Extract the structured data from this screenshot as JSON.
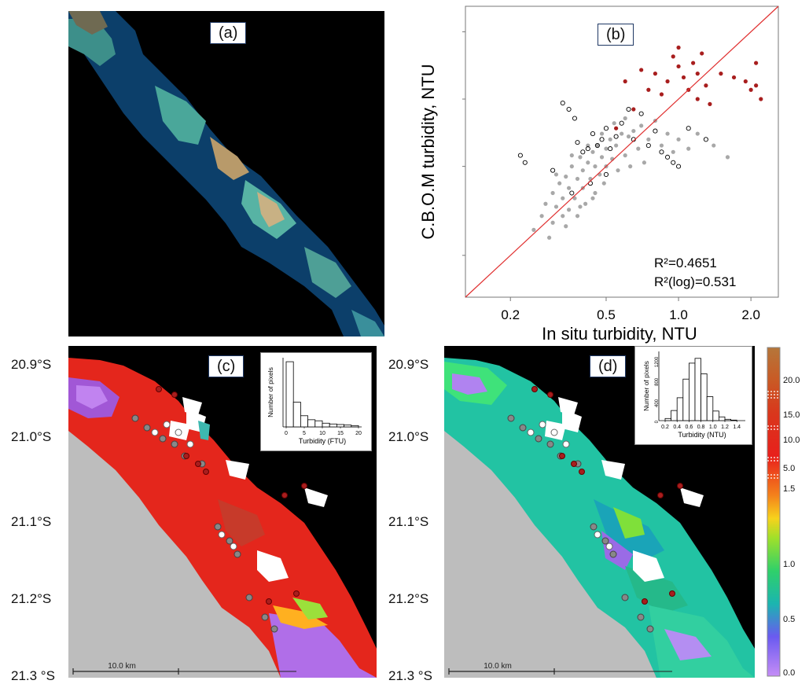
{
  "panel_a": {
    "label": "(a)"
  },
  "panel_b": {
    "label": "(b)",
    "r2": "R²=0.4651",
    "r2_log": "R²(log)=0.531"
  },
  "panel_c": {
    "label": "(c)",
    "scale_bar": "10.0 km"
  },
  "panel_d": {
    "label": "(d)",
    "scale_bar": "10.0 km"
  },
  "latitude_labels": [
    "20.9°S",
    "21.0°S",
    "21.1°S",
    "21.2°S",
    "21.3 °S"
  ],
  "colorbar": {
    "labels": [
      "20.0",
      "15.0",
      "10.0",
      "5.0",
      "1.5",
      "1.0",
      "0.5",
      "0.0"
    ]
  },
  "colors": {
    "hist_bar_fill": "#ffffff",
    "hist_bar_stroke": "#000000",
    "red_points": "#a81e1e",
    "grey_points": "#a8a8a8",
    "one_to_one_line": "#e03030",
    "land_grey": "#bdbdbd"
  },
  "chart_data": [
    {
      "type": "scatter",
      "panel": "(b)",
      "xlabel": "In situ turbidity, NTU",
      "ylabel": "C.B.O.M turbidity, NTU",
      "x_scale": "log",
      "y_scale": "log",
      "xlim": [
        0.13,
        2.6
      ],
      "ylim": [
        0.13,
        2.6
      ],
      "x_ticks": [
        0.2,
        0.5,
        1.0,
        2.0
      ],
      "x_tick_labels": [
        "0.2",
        "0.5",
        "1.0",
        "2.0"
      ],
      "y_ticks": [
        0.2,
        0.5,
        1.0,
        2.0
      ],
      "y_tick_labels": [
        "",
        "",
        "",
        ""
      ],
      "reference_line": "1:1",
      "series": [
        {
          "marker": "filled-grey",
          "color": "#a8a8a8",
          "points": [
            [
              0.25,
              0.26
            ],
            [
              0.27,
              0.3
            ],
            [
              0.28,
              0.34
            ],
            [
              0.3,
              0.28
            ],
            [
              0.3,
              0.38
            ],
            [
              0.31,
              0.33
            ],
            [
              0.32,
              0.42
            ],
            [
              0.33,
              0.3
            ],
            [
              0.33,
              0.36
            ],
            [
              0.34,
              0.45
            ],
            [
              0.35,
              0.32
            ],
            [
              0.35,
              0.4
            ],
            [
              0.36,
              0.5
            ],
            [
              0.37,
              0.36
            ],
            [
              0.38,
              0.44
            ],
            [
              0.38,
              0.3
            ],
            [
              0.39,
              0.55
            ],
            [
              0.4,
              0.4
            ],
            [
              0.4,
              0.48
            ],
            [
              0.41,
              0.34
            ],
            [
              0.42,
              0.52
            ],
            [
              0.43,
              0.44
            ],
            [
              0.44,
              0.58
            ],
            [
              0.45,
              0.38
            ],
            [
              0.45,
              0.5
            ],
            [
              0.46,
              0.62
            ],
            [
              0.47,
              0.46
            ],
            [
              0.48,
              0.55
            ],
            [
              0.49,
              0.42
            ],
            [
              0.5,
              0.6
            ],
            [
              0.5,
              0.5
            ],
            [
              0.52,
              0.66
            ],
            [
              0.53,
              0.54
            ],
            [
              0.55,
              0.62
            ],
            [
              0.56,
              0.48
            ],
            [
              0.58,
              0.7
            ],
            [
              0.6,
              0.56
            ],
            [
              0.62,
              0.68
            ],
            [
              0.63,
              0.5
            ],
            [
              0.65,
              0.72
            ],
            [
              0.68,
              0.6
            ],
            [
              0.7,
              0.76
            ],
            [
              0.72,
              0.52
            ],
            [
              0.75,
              0.66
            ],
            [
              0.8,
              0.8
            ],
            [
              0.85,
              0.62
            ],
            [
              0.9,
              0.7
            ],
            [
              0.95,
              0.58
            ],
            [
              1.0,
              0.66
            ],
            [
              1.1,
              0.6
            ],
            [
              1.2,
              0.7
            ],
            [
              1.4,
              0.62
            ],
            [
              1.6,
              0.55
            ],
            [
              0.29,
              0.24
            ],
            [
              0.34,
              0.27
            ],
            [
              0.39,
              0.33
            ],
            [
              0.44,
              0.36
            ],
            [
              0.31,
              0.46
            ],
            [
              0.36,
              0.56
            ],
            [
              0.42,
              0.62
            ],
            [
              0.48,
              0.7
            ],
            [
              0.54,
              0.78
            ],
            [
              0.6,
              0.82
            ]
          ]
        },
        {
          "marker": "open-black",
          "color": "#000000",
          "points": [
            [
              0.22,
              0.56
            ],
            [
              0.23,
              0.52
            ],
            [
              0.3,
              0.48
            ],
            [
              0.33,
              0.96
            ],
            [
              0.35,
              0.9
            ],
            [
              0.37,
              0.82
            ],
            [
              0.38,
              0.64
            ],
            [
              0.4,
              0.58
            ],
            [
              0.42,
              0.6
            ],
            [
              0.44,
              0.7
            ],
            [
              0.46,
              0.62
            ],
            [
              0.48,
              0.66
            ],
            [
              0.5,
              0.74
            ],
            [
              0.52,
              0.6
            ],
            [
              0.55,
              0.68
            ],
            [
              0.58,
              0.78
            ],
            [
              0.62,
              0.9
            ],
            [
              0.65,
              0.66
            ],
            [
              0.7,
              0.86
            ],
            [
              0.75,
              0.62
            ],
            [
              0.8,
              0.72
            ],
            [
              0.85,
              0.58
            ],
            [
              0.9,
              0.55
            ],
            [
              0.95,
              0.52
            ],
            [
              1.0,
              0.5
            ],
            [
              1.1,
              0.74
            ],
            [
              1.3,
              0.66
            ],
            [
              0.36,
              0.38
            ],
            [
              0.43,
              0.42
            ],
            [
              0.5,
              0.46
            ]
          ]
        },
        {
          "marker": "filled-red",
          "color": "#a81e1e",
          "points": [
            [
              0.55,
              0.74
            ],
            [
              0.65,
              0.9
            ],
            [
              0.75,
              1.1
            ],
            [
              0.8,
              1.3
            ],
            [
              0.85,
              1.05
            ],
            [
              0.9,
              1.2
            ],
            [
              0.95,
              1.55
            ],
            [
              1.0,
              1.7
            ],
            [
              1.0,
              1.4
            ],
            [
              1.05,
              1.25
            ],
            [
              1.1,
              1.1
            ],
            [
              1.15,
              1.45
            ],
            [
              1.2,
              1.0
            ],
            [
              1.2,
              1.3
            ],
            [
              1.25,
              1.6
            ],
            [
              1.3,
              1.15
            ],
            [
              1.35,
              0.95
            ],
            [
              1.5,
              1.3
            ],
            [
              1.7,
              1.25
            ],
            [
              1.9,
              1.2
            ],
            [
              2.0,
              1.1
            ],
            [
              2.1,
              1.15
            ],
            [
              2.2,
              1.0
            ],
            [
              2.1,
              1.45
            ],
            [
              0.6,
              1.2
            ],
            [
              0.7,
              1.35
            ]
          ]
        }
      ]
    },
    {
      "type": "bar",
      "panel": "(c) inset",
      "xlabel": "Turbidity (FTU)",
      "ylabel": "Number of pixels",
      "x_tick_labels": [
        "0",
        "5",
        "10",
        "15",
        "20"
      ],
      "xlim": [
        0,
        22
      ],
      "ylim": [
        0,
        2600
      ],
      "categories": [
        "0-2",
        "2-4",
        "4-6",
        "6-8",
        "8-10",
        "10-12",
        "12-14",
        "14-16",
        "16-18",
        "18-20"
      ],
      "values": [
        2450,
        930,
        420,
        270,
        230,
        140,
        110,
        90,
        70,
        50
      ]
    },
    {
      "type": "bar",
      "panel": "(d) inset",
      "xlabel": "Turbidity (NTU)",
      "ylabel": "Number of pixels",
      "x_tick_labels": [
        "0.2",
        "0.4",
        "0.6",
        "0.8",
        "1.0",
        "1.2",
        "1.4"
      ],
      "y_tick_labels": [
        "0",
        "400",
        "800",
        "1200"
      ],
      "xlim": [
        0.1,
        1.45
      ],
      "ylim": [
        0,
        1300
      ],
      "categories": [
        "0.2-0.3",
        "0.3-0.4",
        "0.4-0.5",
        "0.5-0.6",
        "0.6-0.7",
        "0.7-0.8",
        "0.8-0.9",
        "0.9-1.0",
        "1.0-1.1",
        "1.1-1.2",
        "1.2-1.3",
        "1.3-1.4"
      ],
      "values": [
        40,
        190,
        430,
        780,
        1080,
        1170,
        880,
        450,
        180,
        70,
        25,
        10
      ]
    }
  ]
}
